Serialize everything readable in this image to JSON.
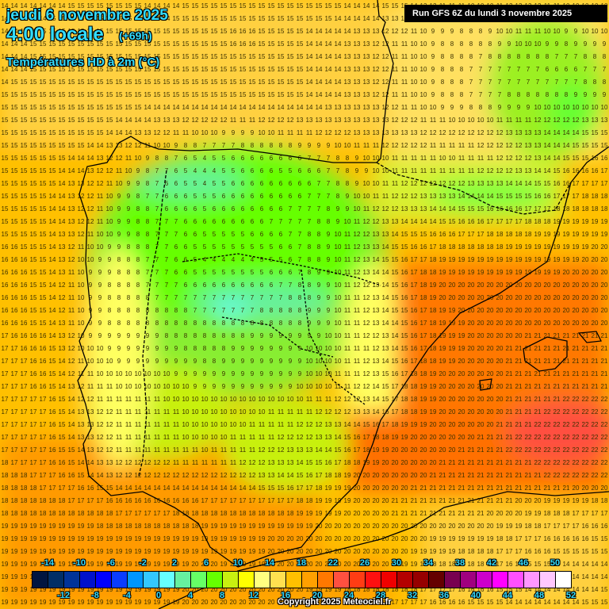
{
  "header": {
    "date": "jeudi 6 novembre 2025",
    "time": "4:00 locale",
    "offset": "(+69h)",
    "parameter": "Températures HD à 2m (°C)"
  },
  "run_banner": "Run GFS 6Z du lundi 3 novembre 2025",
  "copyright": "Copyright 2025 Meteociel.fr",
  "scale": {
    "colors": [
      "#001540",
      "#002e66",
      "#003399",
      "#0011cc",
      "#0000ff",
      "#0a3cff",
      "#0096ff",
      "#33c8ff",
      "#66ffff",
      "#66f0a0",
      "#66ff66",
      "#66ff00",
      "#c8f010",
      "#ffff00",
      "#ffff80",
      "#ffe050",
      "#ffc000",
      "#ffa000",
      "#ff7800",
      "#ff5040",
      "#ff3c14",
      "#ff1010",
      "#f00000",
      "#b40000",
      "#960000",
      "#640000",
      "#780050",
      "#a00080",
      "#cc00cc",
      "#ff00ff",
      "#ff50ff",
      "#ff96ff",
      "#ffc8ff",
      "#ffffff"
    ],
    "top_ticks": [
      "-14",
      "-10",
      "-6",
      "-2",
      "2",
      "6",
      "10",
      "14",
      "18",
      "22",
      "26",
      "30",
      "34",
      "38",
      "42",
      "46",
      "50"
    ],
    "bottom_ticks": [
      "-12",
      "-8",
      "-4",
      "0",
      "4",
      "8",
      "12",
      "16",
      "20",
      "24",
      "28",
      "32",
      "36",
      "40",
      "44",
      "48",
      "52"
    ]
  },
  "map": {
    "region": "Iberian Peninsula, western Mediterranean",
    "grid_cols": 64,
    "grid_rows": 48,
    "coarse_temperature_grid": [
      [
        14,
        14,
        15,
        15,
        14,
        15,
        15,
        15,
        15,
        14,
        15,
        11,
        10,
        13,
        10,
        10
      ],
      [
        14,
        15,
        15,
        15,
        15,
        15,
        16,
        15,
        14,
        13,
        11,
        8,
        8,
        11,
        9,
        10
      ],
      [
        14,
        15,
        15,
        15,
        15,
        15,
        15,
        15,
        14,
        13,
        11,
        8,
        7,
        7,
        6,
        7
      ],
      [
        15,
        15,
        15,
        15,
        15,
        15,
        15,
        15,
        14,
        13,
        11,
        8,
        7,
        8,
        9,
        9
      ],
      [
        15,
        15,
        15,
        14,
        12,
        10,
        9,
        11,
        12,
        13,
        13,
        12,
        12,
        13,
        14,
        15
      ],
      [
        15,
        15,
        14,
        11,
        7,
        3,
        6,
        5,
        6,
        9,
        11,
        10,
        11,
        12,
        15,
        16
      ],
      [
        15,
        15,
        12,
        9,
        6,
        5,
        6,
        6,
        7,
        10,
        12,
        13,
        14,
        15,
        17,
        18
      ],
      [
        15,
        15,
        12,
        9,
        7,
        6,
        6,
        7,
        8,
        12,
        14,
        15,
        17,
        18,
        19,
        19
      ],
      [
        16,
        15,
        10,
        8,
        7,
        4,
        4,
        5,
        9,
        13,
        16,
        19,
        19,
        19,
        19,
        20
      ],
      [
        16,
        15,
        9,
        8,
        7,
        6,
        6,
        7,
        9,
        12,
        16,
        20,
        20,
        20,
        20,
        20
      ],
      [
        16,
        15,
        9,
        8,
        8,
        8,
        8,
        8,
        9,
        12,
        15,
        19,
        20,
        20,
        20,
        20
      ],
      [
        17,
        16,
        10,
        9,
        9,
        8,
        9,
        9,
        10,
        11,
        15,
        19,
        20,
        21,
        21,
        21
      ],
      [
        17,
        16,
        11,
        10,
        10,
        9,
        9,
        9,
        10,
        12,
        18,
        20,
        20,
        21,
        21,
        21
      ],
      [
        17,
        17,
        13,
        11,
        11,
        10,
        10,
        11,
        12,
        13,
        18,
        20,
        20,
        21,
        22,
        22
      ],
      [
        17,
        17,
        13,
        11,
        11,
        10,
        11,
        12,
        13,
        18,
        20,
        20,
        21,
        22,
        22,
        22
      ],
      [
        18,
        17,
        15,
        12,
        12,
        12,
        12,
        14,
        18,
        20,
        20,
        21,
        21,
        21,
        22,
        22
      ],
      [
        18,
        18,
        18,
        17,
        17,
        18,
        18,
        18,
        19,
        20,
        21,
        21,
        21,
        20,
        18,
        17
      ],
      [
        19,
        19,
        19,
        19,
        19,
        19,
        19,
        20,
        20,
        20,
        20,
        19,
        19,
        17,
        16,
        15
      ],
      [
        19,
        19,
        19,
        19,
        19,
        20,
        19,
        20,
        20,
        20,
        19,
        18,
        17,
        15,
        14,
        14
      ],
      [
        19,
        19,
        19,
        19,
        19,
        20,
        20,
        20,
        18,
        17,
        17,
        16,
        15,
        14,
        14,
        15
      ]
    ]
  }
}
